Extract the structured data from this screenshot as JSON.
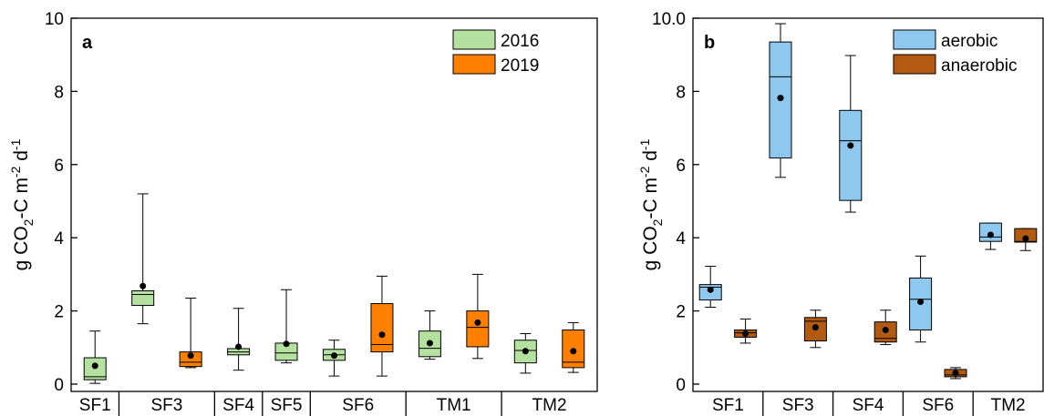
{
  "chart_data": [
    {
      "type": "box",
      "panel_label": "a",
      "ylabel": [
        "g CO",
        "2",
        "-C m",
        "-2",
        " d",
        "-1"
      ],
      "categories": [
        "SF1",
        "SF3",
        "SF4",
        "SF5",
        "SF6",
        "TM1",
        "TM2"
      ],
      "ylim": [
        -0.2,
        10
      ],
      "yticks": [
        0,
        2,
        4,
        6,
        8,
        10
      ],
      "legend": "upper right",
      "series": [
        {
          "name": "2016",
          "color": "#b4e1a0",
          "values": [
            {
              "min": 0.02,
              "q1": 0.12,
              "median": 0.2,
              "q3": 0.72,
              "max": 1.45,
              "mean": 0.5
            },
            {
              "min": 1.65,
              "q1": 2.15,
              "median": 2.45,
              "q3": 2.55,
              "max": 5.2,
              "mean": 2.68
            },
            {
              "min": 0.38,
              "q1": 0.8,
              "median": 0.88,
              "q3": 0.97,
              "max": 2.07,
              "mean": 1.02
            },
            {
              "min": 0.58,
              "q1": 0.65,
              "median": 0.85,
              "q3": 1.12,
              "max": 2.58,
              "mean": 1.1
            },
            {
              "min": 0.22,
              "q1": 0.65,
              "median": 0.8,
              "q3": 0.95,
              "max": 1.2,
              "mean": 0.78
            },
            {
              "min": 0.68,
              "q1": 0.75,
              "median": 0.98,
              "q3": 1.45,
              "max": 2.0,
              "mean": 1.12
            },
            {
              "min": 0.3,
              "q1": 0.58,
              "median": 0.92,
              "q3": 1.2,
              "max": 1.38,
              "mean": 0.9
            }
          ]
        },
        {
          "name": "2019",
          "color": "#ff8000",
          "values": [
            null,
            {
              "min": 0.45,
              "q1": 0.48,
              "median": 0.6,
              "q3": 0.88,
              "max": 2.35,
              "mean": 0.78
            },
            null,
            null,
            {
              "min": 0.22,
              "q1": 0.88,
              "median": 1.08,
              "q3": 2.2,
              "max": 2.95,
              "mean": 1.35
            },
            {
              "min": 0.7,
              "q1": 1.02,
              "median": 1.55,
              "q3": 2.0,
              "max": 3.0,
              "mean": 1.68
            },
            {
              "min": 0.32,
              "q1": 0.45,
              "median": 0.6,
              "q3": 1.48,
              "max": 1.68,
              "mean": 0.9
            }
          ]
        }
      ]
    },
    {
      "type": "box",
      "panel_label": "b",
      "ylabel": [
        "g CO",
        "2",
        "-C m",
        "-2",
        " d",
        "-1"
      ],
      "categories": [
        "SF1",
        "SF3",
        "SF4",
        "SF6",
        "TM2"
      ],
      "ylim": [
        -0.2,
        10
      ],
      "yticks": [
        0,
        2,
        4,
        6,
        8,
        {
          "value": 10,
          "label": "10.0"
        }
      ],
      "legend": "upper right",
      "series": [
        {
          "name": "aerobic",
          "color": "#8ec8ef",
          "values": [
            {
              "min": 2.1,
              "q1": 2.3,
              "median": 2.65,
              "q3": 2.72,
              "max": 3.22,
              "mean": 2.58
            },
            {
              "min": 5.65,
              "q1": 6.18,
              "median": 8.4,
              "q3": 9.35,
              "max": 9.85,
              "mean": 7.82
            },
            {
              "min": 4.7,
              "q1": 5.02,
              "median": 6.65,
              "q3": 7.48,
              "max": 8.98,
              "mean": 6.52
            },
            {
              "min": 1.15,
              "q1": 1.48,
              "median": 2.32,
              "q3": 2.9,
              "max": 3.5,
              "mean": 2.25
            },
            {
              "min": 3.68,
              "q1": 3.9,
              "median": 4.02,
              "q3": 4.4,
              "max": 4.4,
              "mean": 4.08
            }
          ]
        },
        {
          "name": "anaerobic",
          "color": "#b35a12",
          "values": [
            {
              "min": 1.12,
              "q1": 1.28,
              "median": 1.4,
              "q3": 1.48,
              "max": 1.78,
              "mean": 1.38
            },
            {
              "min": 1.0,
              "q1": 1.18,
              "median": 1.72,
              "q3": 1.82,
              "max": 2.02,
              "mean": 1.55
            },
            {
              "min": 1.08,
              "q1": 1.15,
              "median": 1.25,
              "q3": 1.7,
              "max": 2.02,
              "mean": 1.48
            },
            {
              "min": 0.15,
              "q1": 0.2,
              "median": 0.25,
              "q3": 0.4,
              "max": 0.45,
              "mean": 0.3
            },
            {
              "min": 3.65,
              "q1": 3.88,
              "median": 3.9,
              "q3": 4.25,
              "max": 4.25,
              "mean": 3.98
            }
          ]
        }
      ]
    }
  ]
}
